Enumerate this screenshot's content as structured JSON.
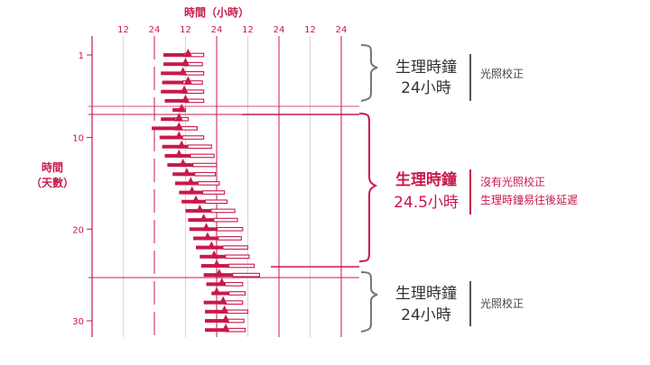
{
  "colors": {
    "accent": "#c8194b",
    "grid": "#c8194b",
    "text": "#333333",
    "bracket": "#777777"
  },
  "chart_data": {
    "type": "bar",
    "title": "",
    "xlabel": "時間（小時）",
    "ylabel": "時間\n（天數）",
    "x_tick_labels": [
      "12",
      "24",
      "12",
      "24",
      "12",
      "24",
      "12",
      "24"
    ],
    "x_range_hours": [
      0,
      96
    ],
    "y_tick_labels": [
      "1",
      "10",
      "20",
      "30"
    ],
    "y_tick_values": [
      1,
      10,
      20,
      30
    ],
    "y_range_days": [
      1,
      31
    ],
    "series": [
      {
        "description": "sleep_onset_hour / wake_hour / peak_marker_hour per day",
        "days": [
          {
            "day": 1,
            "sleep": 27.5,
            "wake": 43,
            "peak": 37
          },
          {
            "day": 2,
            "sleep": 27.5,
            "wake": 42.5,
            "peak": 36
          },
          {
            "day": 3,
            "sleep": 26.5,
            "wake": 43,
            "peak": 35
          },
          {
            "day": 4,
            "sleep": 27,
            "wake": 42.5,
            "peak": 37
          },
          {
            "day": 5,
            "sleep": 26.5,
            "wake": 43,
            "peak": 35.5
          },
          {
            "day": 6,
            "sleep": 28,
            "wake": 43,
            "peak": 36
          },
          {
            "day": 7,
            "sleep": 31,
            "wake": 36,
            "peak": 34.5
          },
          {
            "day": 8,
            "sleep": 26.5,
            "wake": 37,
            "peak": 33.5
          },
          {
            "day": 9,
            "sleep": 23,
            "wake": 40.5,
            "peak": 33.5
          },
          {
            "day": 10,
            "sleep": 26,
            "wake": 43,
            "peak": 33.5
          },
          {
            "day": 11,
            "sleep": 27,
            "wake": 46,
            "peak": 34.5
          },
          {
            "day": 12,
            "sleep": 28,
            "wake": 47,
            "peak": 33.5
          },
          {
            "day": 13,
            "sleep": 29,
            "wake": 48,
            "peak": 35
          },
          {
            "day": 14,
            "sleep": 31,
            "wake": 47.5,
            "peak": 36.5
          },
          {
            "day": 15,
            "sleep": 32,
            "wake": 49,
            "peak": 38
          },
          {
            "day": 16,
            "sleep": 33.5,
            "wake": 51,
            "peak": 38.5
          },
          {
            "day": 17,
            "sleep": 34.5,
            "wake": 52,
            "peak": 40
          },
          {
            "day": 18,
            "sleep": 36,
            "wake": 55,
            "peak": 41.5
          },
          {
            "day": 19,
            "sleep": 37,
            "wake": 56,
            "peak": 43
          },
          {
            "day": 20,
            "sleep": 37.5,
            "wake": 58,
            "peak": 44
          },
          {
            "day": 21,
            "sleep": 39,
            "wake": 57.5,
            "peak": 44.5
          },
          {
            "day": 22,
            "sleep": 40,
            "wake": 60,
            "peak": 46
          },
          {
            "day": 23,
            "sleep": 41.5,
            "wake": 60.5,
            "peak": 47
          },
          {
            "day": 24,
            "sleep": 42,
            "wake": 62.5,
            "peak": 48
          },
          {
            "day": 25,
            "sleep": 43,
            "wake": 64.5,
            "peak": 49
          },
          {
            "day": 26,
            "sleep": 44,
            "wake": 58,
            "peak": 50
          },
          {
            "day": 27,
            "sleep": 46,
            "wake": 59,
            "peak": 48
          },
          {
            "day": 28,
            "sleep": 43,
            "wake": 58,
            "peak": 50.5
          },
          {
            "day": 29,
            "sleep": 43.5,
            "wake": 60,
            "peak": 51
          },
          {
            "day": 30,
            "sleep": 43.5,
            "wake": 58.5,
            "peak": 51.5
          },
          {
            "day": 31,
            "sleep": 43.5,
            "wake": 59,
            "peak": 51.5
          }
        ]
      }
    ],
    "annotations": [
      {
        "main_line1": "生理時鐘",
        "main_line2": "24小時",
        "note_lines": [
          "光照校正"
        ],
        "highlight": false
      },
      {
        "main_line1": "生理時鐘",
        "main_line2": "24.5小時",
        "note_lines": [
          "沒有光照校正",
          "生理時鐘易往後延遲"
        ],
        "highlight": true
      },
      {
        "main_line1": "生理時鐘",
        "main_line2": "24小時",
        "note_lines": [
          "光照校正"
        ],
        "highlight": false
      }
    ],
    "grid": true,
    "legend": "none"
  }
}
